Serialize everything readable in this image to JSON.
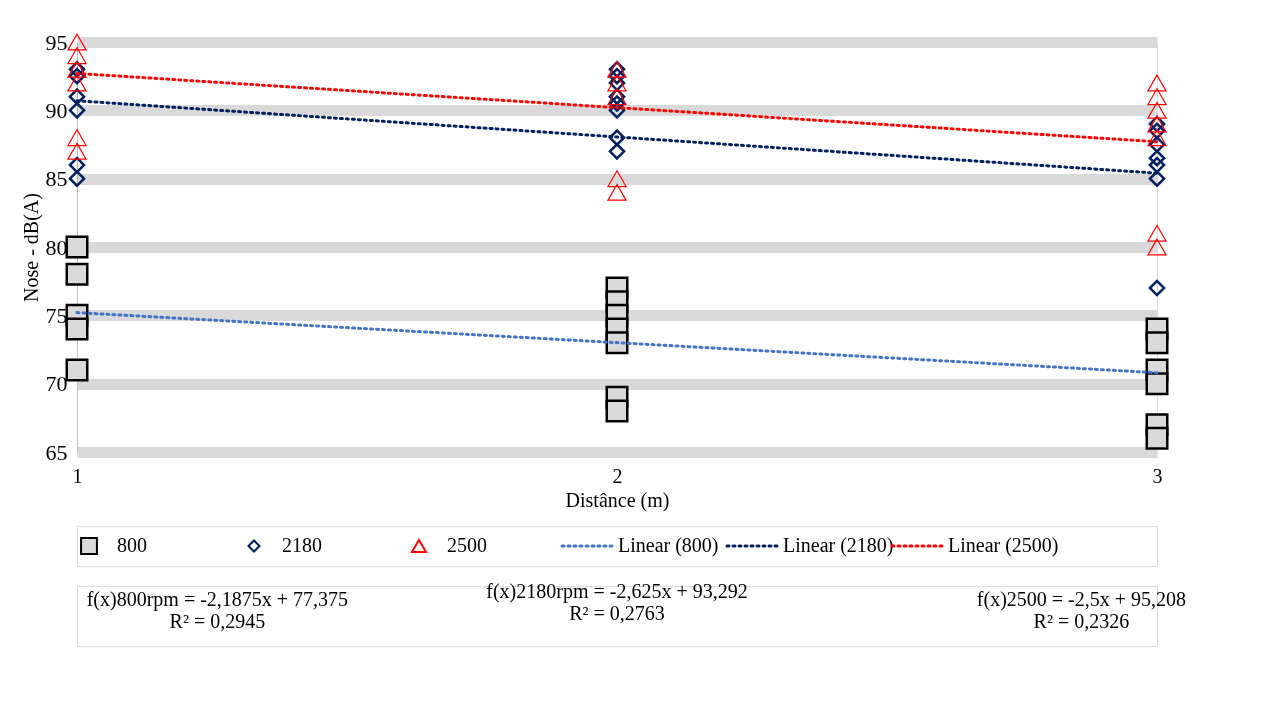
{
  "chart_data": {
    "type": "scatter",
    "xlabel": "Distânce (m)",
    "ylabel": "Nose - dB(A)",
    "xlim": [
      1,
      3
    ],
    "xticks": [
      1,
      2,
      3
    ],
    "ylim": [
      65,
      95
    ],
    "yticks": [
      65,
      70,
      75,
      80,
      85,
      90,
      95
    ],
    "grid": "y",
    "legend": "bottom",
    "series": [
      {
        "name": "800",
        "marker": "square",
        "color": "#d9d9d9",
        "x": [
          1,
          1,
          1,
          1,
          1,
          2,
          2,
          2,
          2,
          2,
          2,
          2,
          3,
          3,
          3,
          3,
          3,
          3
        ],
        "values": [
          80,
          78,
          75,
          74,
          71,
          77,
          76,
          75,
          74,
          73,
          69,
          68,
          74,
          73,
          71,
          70,
          67,
          66
        ]
      },
      {
        "name": "2180",
        "marker": "diamond",
        "color": "#002060",
        "x": [
          1,
          1,
          1,
          1,
          1,
          1,
          2,
          2,
          2,
          2,
          2,
          2,
          2,
          2,
          3,
          3,
          3,
          3,
          3,
          3,
          3
        ],
        "values": [
          93,
          92.5,
          91,
          90,
          86,
          85,
          93,
          92.5,
          92,
          91,
          90.5,
          90,
          88,
          87,
          89,
          88.5,
          87.5,
          86.5,
          86,
          85,
          77
        ]
      },
      {
        "name": "2500",
        "marker": "triangle",
        "color": "#ff0000",
        "x": [
          1,
          1,
          1,
          1,
          1,
          1,
          2,
          2,
          2,
          2,
          2,
          3,
          3,
          3,
          3,
          3,
          3,
          3
        ],
        "values": [
          95,
          94,
          93,
          92,
          88,
          87,
          93,
          92,
          91,
          85,
          84,
          92,
          91,
          90,
          89,
          88,
          81,
          80
        ]
      },
      {
        "name": "Linear (800)",
        "type": "line",
        "line_style": "dotted",
        "color": "#4472c4",
        "x": [
          1,
          3
        ],
        "values": [
          75.2,
          70.8
        ]
      },
      {
        "name": "Linear (2180)",
        "type": "line",
        "line_style": "dotted",
        "color": "#002060",
        "x": [
          1,
          3
        ],
        "values": [
          90.7,
          85.4
        ]
      },
      {
        "name": "Linear (2500)",
        "type": "line",
        "line_style": "dotted",
        "color": "#ff0000",
        "x": [
          1,
          3
        ],
        "values": [
          92.7,
          87.7
        ]
      }
    ],
    "annotations": [
      "f(x)800rpm = -2,1875x + 77,375\nR² = 0,2945",
      "f(x)2180rpm = -2,625x + 93,292\nR² = 0,2763",
      "f(x)2500 = -2,5x + 95,208\nR² = 0,2326"
    ]
  }
}
